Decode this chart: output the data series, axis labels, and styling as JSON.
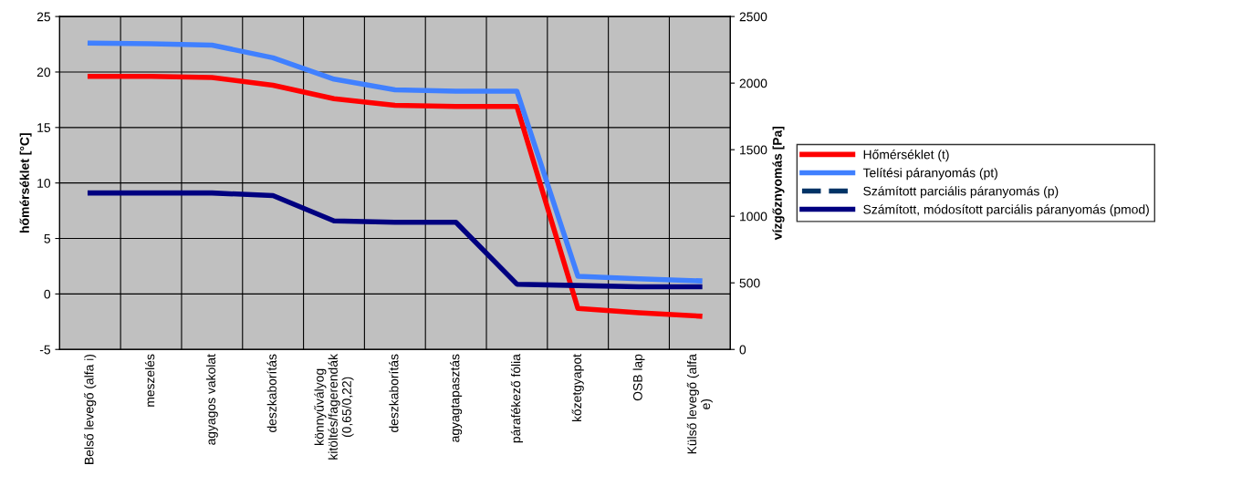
{
  "chart_data": {
    "type": "line",
    "categories": [
      "Belső levegő (alfa i)",
      "meszelés",
      "agyagos vakolat",
      "deszkaborítás",
      "könnyűvályog\nkitöltés/fagerendák\n(0,65/0,22)",
      "deszkaborítás",
      "agyagtapasztás",
      "párafékező fólia",
      "kőzetgyapot",
      "OSB lap",
      "Külső levegő (alfa\ne)"
    ],
    "ylabel": "hőmérséklet [°C]",
    "y2label": "vízgőznyomás [Pa]",
    "ylim": [
      -5,
      25
    ],
    "yticks": [
      -5,
      0,
      5,
      10,
      15,
      20,
      25
    ],
    "y2lim": [
      0,
      2500
    ],
    "y2ticks": [
      0,
      500,
      1000,
      1500,
      2000,
      2500
    ],
    "grid": true,
    "legend": "right",
    "marker": "none",
    "series": [
      {
        "name": "Hőmérséklet (t)",
        "color": "#ff0000",
        "values": [
          19.6,
          19.6,
          19.5,
          18.8,
          17.6,
          17.0,
          16.9,
          16.9,
          -1.3,
          -1.7,
          -2.0
        ]
      },
      {
        "name": "Telítési páranyomás (pt)",
        "color": "#4080ff",
        "axis": "y2",
        "values": [
          2300,
          2295,
          2285,
          2190,
          2030,
          1950,
          1940,
          1940,
          550,
          530,
          515
        ]
      },
      {
        "name": "Számított parciális páranyomás (p)",
        "color": "#003366",
        "axis": "y2",
        "line_style": "dashed",
        "values": [
          null,
          null,
          null,
          null,
          null,
          null,
          null,
          null,
          null,
          null,
          null
        ]
      },
      {
        "name": "Számított, módosított parciális páranyomás (pmod)",
        "color": "#000080",
        "axis": "y2",
        "values": [
          1175,
          1175,
          1175,
          1155,
          965,
          955,
          955,
          490,
          480,
          470,
          470
        ]
      }
    ]
  }
}
